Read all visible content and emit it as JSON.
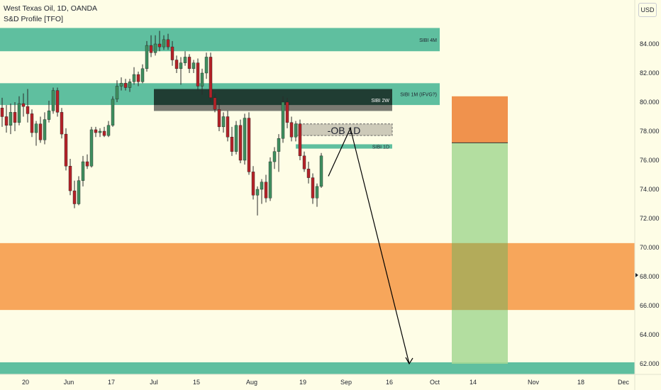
{
  "header": {
    "symbol_line": "West Texas Oil, 1D, OANDA",
    "indicator": "S&D Profile [TFO]",
    "currency": "USD"
  },
  "colors": {
    "background": "#fefde6",
    "up_candle": "#3f8f5f",
    "down_candle": "#b52228",
    "wick": "#2a2a2a",
    "zone_teal": "#5fbf9f",
    "zone_dark": "#203d33",
    "zone_orange": "#f7a65b",
    "target_green": "#a6d893",
    "stop_orange": "#f0924d"
  },
  "chart_data": {
    "type": "candlestick",
    "y_axis": {
      "ticks": [
        84,
        82,
        80,
        78,
        76,
        74,
        72,
        70,
        68,
        66,
        64,
        62
      ],
      "tick_labels": [
        "84.000",
        "82.000",
        "80.000",
        "78.000",
        "76.000",
        "74.000",
        "72.000",
        "70.000",
        "68.000",
        "66.000",
        "64.000",
        "62.000"
      ],
      "ylim": [
        61.3,
        87.6
      ]
    },
    "x_axis": {
      "tick_labels": [
        "20",
        "Jun",
        "17",
        "Jul",
        "15",
        "Aug",
        "19",
        "Sep",
        "16",
        "Oct",
        "14",
        "Nov",
        "18",
        "Dec"
      ]
    },
    "candles": [
      {
        "o": 79.6,
        "h": 80.3,
        "l": 78.3,
        "c": 79.0
      },
      {
        "o": 79.0,
        "h": 79.8,
        "l": 77.9,
        "c": 78.4
      },
      {
        "o": 78.4,
        "h": 79.9,
        "l": 77.8,
        "c": 79.3
      },
      {
        "o": 79.3,
        "h": 80.0,
        "l": 78.0,
        "c": 78.6
      },
      {
        "o": 78.6,
        "h": 80.4,
        "l": 78.4,
        "c": 79.9
      },
      {
        "o": 79.9,
        "h": 80.6,
        "l": 79.0,
        "c": 79.7
      },
      {
        "o": 79.7,
        "h": 80.9,
        "l": 78.6,
        "c": 79.2
      },
      {
        "o": 79.2,
        "h": 79.5,
        "l": 77.6,
        "c": 77.9
      },
      {
        "o": 77.9,
        "h": 78.7,
        "l": 77.0,
        "c": 78.5
      },
      {
        "o": 78.5,
        "h": 79.0,
        "l": 77.2,
        "c": 77.4
      },
      {
        "o": 77.4,
        "h": 79.3,
        "l": 77.1,
        "c": 78.8
      },
      {
        "o": 78.8,
        "h": 80.1,
        "l": 78.6,
        "c": 79.4
      },
      {
        "o": 79.4,
        "h": 81.0,
        "l": 79.2,
        "c": 80.8
      },
      {
        "o": 80.8,
        "h": 81.0,
        "l": 79.0,
        "c": 79.3
      },
      {
        "o": 79.3,
        "h": 79.6,
        "l": 77.5,
        "c": 77.8
      },
      {
        "o": 77.8,
        "h": 78.2,
        "l": 75.3,
        "c": 75.6
      },
      {
        "o": 75.6,
        "h": 76.1,
        "l": 73.6,
        "c": 73.9
      },
      {
        "o": 73.9,
        "h": 74.6,
        "l": 72.7,
        "c": 73.0
      },
      {
        "o": 73.0,
        "h": 74.9,
        "l": 72.9,
        "c": 74.6
      },
      {
        "o": 74.6,
        "h": 76.3,
        "l": 74.2,
        "c": 75.9
      },
      {
        "o": 75.9,
        "h": 76.4,
        "l": 75.4,
        "c": 75.6
      },
      {
        "o": 75.6,
        "h": 78.3,
        "l": 75.5,
        "c": 78.1
      },
      {
        "o": 78.1,
        "h": 78.3,
        "l": 77.6,
        "c": 77.9
      },
      {
        "o": 77.9,
        "h": 78.2,
        "l": 77.6,
        "c": 78.0
      },
      {
        "o": 78.0,
        "h": 78.3,
        "l": 77.6,
        "c": 77.7
      },
      {
        "o": 77.7,
        "h": 78.7,
        "l": 77.6,
        "c": 78.4
      },
      {
        "o": 78.4,
        "h": 80.4,
        "l": 78.3,
        "c": 80.2
      },
      {
        "o": 80.2,
        "h": 81.5,
        "l": 80.0,
        "c": 81.1
      },
      {
        "o": 81.1,
        "h": 81.7,
        "l": 80.8,
        "c": 81.3
      },
      {
        "o": 81.3,
        "h": 81.6,
        "l": 80.8,
        "c": 81.0
      },
      {
        "o": 81.0,
        "h": 81.6,
        "l": 80.7,
        "c": 81.4
      },
      {
        "o": 81.4,
        "h": 82.4,
        "l": 81.2,
        "c": 81.9
      },
      {
        "o": 81.9,
        "h": 82.1,
        "l": 81.1,
        "c": 81.4
      },
      {
        "o": 81.4,
        "h": 82.6,
        "l": 81.3,
        "c": 82.3
      },
      {
        "o": 82.3,
        "h": 84.2,
        "l": 82.1,
        "c": 83.9
      },
      {
        "o": 83.9,
        "h": 84.6,
        "l": 83.1,
        "c": 83.4
      },
      {
        "o": 83.4,
        "h": 84.6,
        "l": 83.2,
        "c": 84.0
      },
      {
        "o": 84.0,
        "h": 84.9,
        "l": 83.5,
        "c": 83.8
      },
      {
        "o": 83.8,
        "h": 84.6,
        "l": 83.6,
        "c": 84.3
      },
      {
        "o": 84.3,
        "h": 84.7,
        "l": 83.6,
        "c": 83.8
      },
      {
        "o": 83.8,
        "h": 84.2,
        "l": 82.5,
        "c": 82.9
      },
      {
        "o": 82.9,
        "h": 83.2,
        "l": 82.0,
        "c": 82.3
      },
      {
        "o": 82.3,
        "h": 83.1,
        "l": 81.2,
        "c": 82.7
      },
      {
        "o": 82.7,
        "h": 83.5,
        "l": 82.5,
        "c": 83.1
      },
      {
        "o": 83.1,
        "h": 83.3,
        "l": 82.0,
        "c": 82.3
      },
      {
        "o": 82.3,
        "h": 82.9,
        "l": 82.0,
        "c": 82.7
      },
      {
        "o": 82.7,
        "h": 83.0,
        "l": 80.8,
        "c": 81.1
      },
      {
        "o": 81.1,
        "h": 82.3,
        "l": 80.5,
        "c": 82.0
      },
      {
        "o": 82.0,
        "h": 83.4,
        "l": 81.6,
        "c": 83.1
      },
      {
        "o": 83.1,
        "h": 83.4,
        "l": 80.0,
        "c": 80.3
      },
      {
        "o": 80.3,
        "h": 80.6,
        "l": 79.3,
        "c": 79.5
      },
      {
        "o": 79.5,
        "h": 79.9,
        "l": 78.0,
        "c": 78.3
      },
      {
        "o": 78.3,
        "h": 79.3,
        "l": 77.9,
        "c": 79.0
      },
      {
        "o": 79.0,
        "h": 79.4,
        "l": 77.3,
        "c": 77.6
      },
      {
        "o": 77.6,
        "h": 78.3,
        "l": 76.3,
        "c": 76.6
      },
      {
        "o": 76.6,
        "h": 78.7,
        "l": 76.4,
        "c": 78.4
      },
      {
        "o": 78.4,
        "h": 78.8,
        "l": 75.8,
        "c": 76.0
      },
      {
        "o": 76.0,
        "h": 79.2,
        "l": 75.7,
        "c": 78.9
      },
      {
        "o": 78.9,
        "h": 79.3,
        "l": 75.0,
        "c": 75.2
      },
      {
        "o": 75.2,
        "h": 75.6,
        "l": 73.3,
        "c": 73.6
      },
      {
        "o": 73.6,
        "h": 74.2,
        "l": 72.2,
        "c": 74.0
      },
      {
        "o": 74.0,
        "h": 74.7,
        "l": 73.0,
        "c": 74.5
      },
      {
        "o": 74.5,
        "h": 75.0,
        "l": 73.1,
        "c": 73.4
      },
      {
        "o": 73.4,
        "h": 76.2,
        "l": 73.2,
        "c": 75.9
      },
      {
        "o": 75.9,
        "h": 76.9,
        "l": 75.4,
        "c": 76.6
      },
      {
        "o": 76.6,
        "h": 77.8,
        "l": 75.2,
        "c": 77.5
      },
      {
        "o": 77.5,
        "h": 80.4,
        "l": 77.2,
        "c": 80.0
      },
      {
        "o": 80.0,
        "h": 80.3,
        "l": 78.2,
        "c": 78.6
      },
      {
        "o": 78.6,
        "h": 79.0,
        "l": 77.3,
        "c": 77.6
      },
      {
        "o": 77.6,
        "h": 78.7,
        "l": 77.3,
        "c": 78.5
      },
      {
        "o": 78.5,
        "h": 78.8,
        "l": 76.0,
        "c": 76.3
      },
      {
        "o": 76.3,
        "h": 76.6,
        "l": 75.2,
        "c": 75.4
      },
      {
        "o": 75.4,
        "h": 75.9,
        "l": 74.4,
        "c": 74.8
      },
      {
        "o": 74.8,
        "h": 75.1,
        "l": 73.0,
        "c": 73.4
      },
      {
        "o": 73.4,
        "h": 74.4,
        "l": 72.8,
        "c": 74.2
      },
      {
        "o": 74.2,
        "h": 76.5,
        "l": 74.1,
        "c": 76.3
      }
    ],
    "zones": [
      {
        "label": "SIBI 4M",
        "y_top": 85.1,
        "y_bottom": 83.5,
        "color": "teal"
      },
      {
        "label": "SIBI 1M (IFVG?)",
        "y_top": 81.3,
        "y_bottom": 79.8,
        "color": "teal"
      },
      {
        "label": "SIBI 2W",
        "y_top": 80.9,
        "y_bottom": 79.4,
        "color": "dark"
      },
      {
        "label": "-OB 1D",
        "y_top": 78.5,
        "y_bottom": 77.7,
        "color": "grey"
      },
      {
        "label": "SIBI 1D",
        "y_top": 77.1,
        "y_bottom": 76.8,
        "color": "teal"
      },
      {
        "label": "",
        "y_top": 70.3,
        "y_bottom": 65.7,
        "color": "orange"
      },
      {
        "label": "",
        "y_top": 62.1,
        "y_bottom": 61.3,
        "color": "teal"
      }
    ],
    "projection": {
      "points": [
        [
          74.9
        ],
        [
          78.2
        ],
        [
          62.0
        ]
      ],
      "stop_top": 80.4,
      "entry": 77.2,
      "target": 62.0
    },
    "current_price_marker": 68.1
  }
}
